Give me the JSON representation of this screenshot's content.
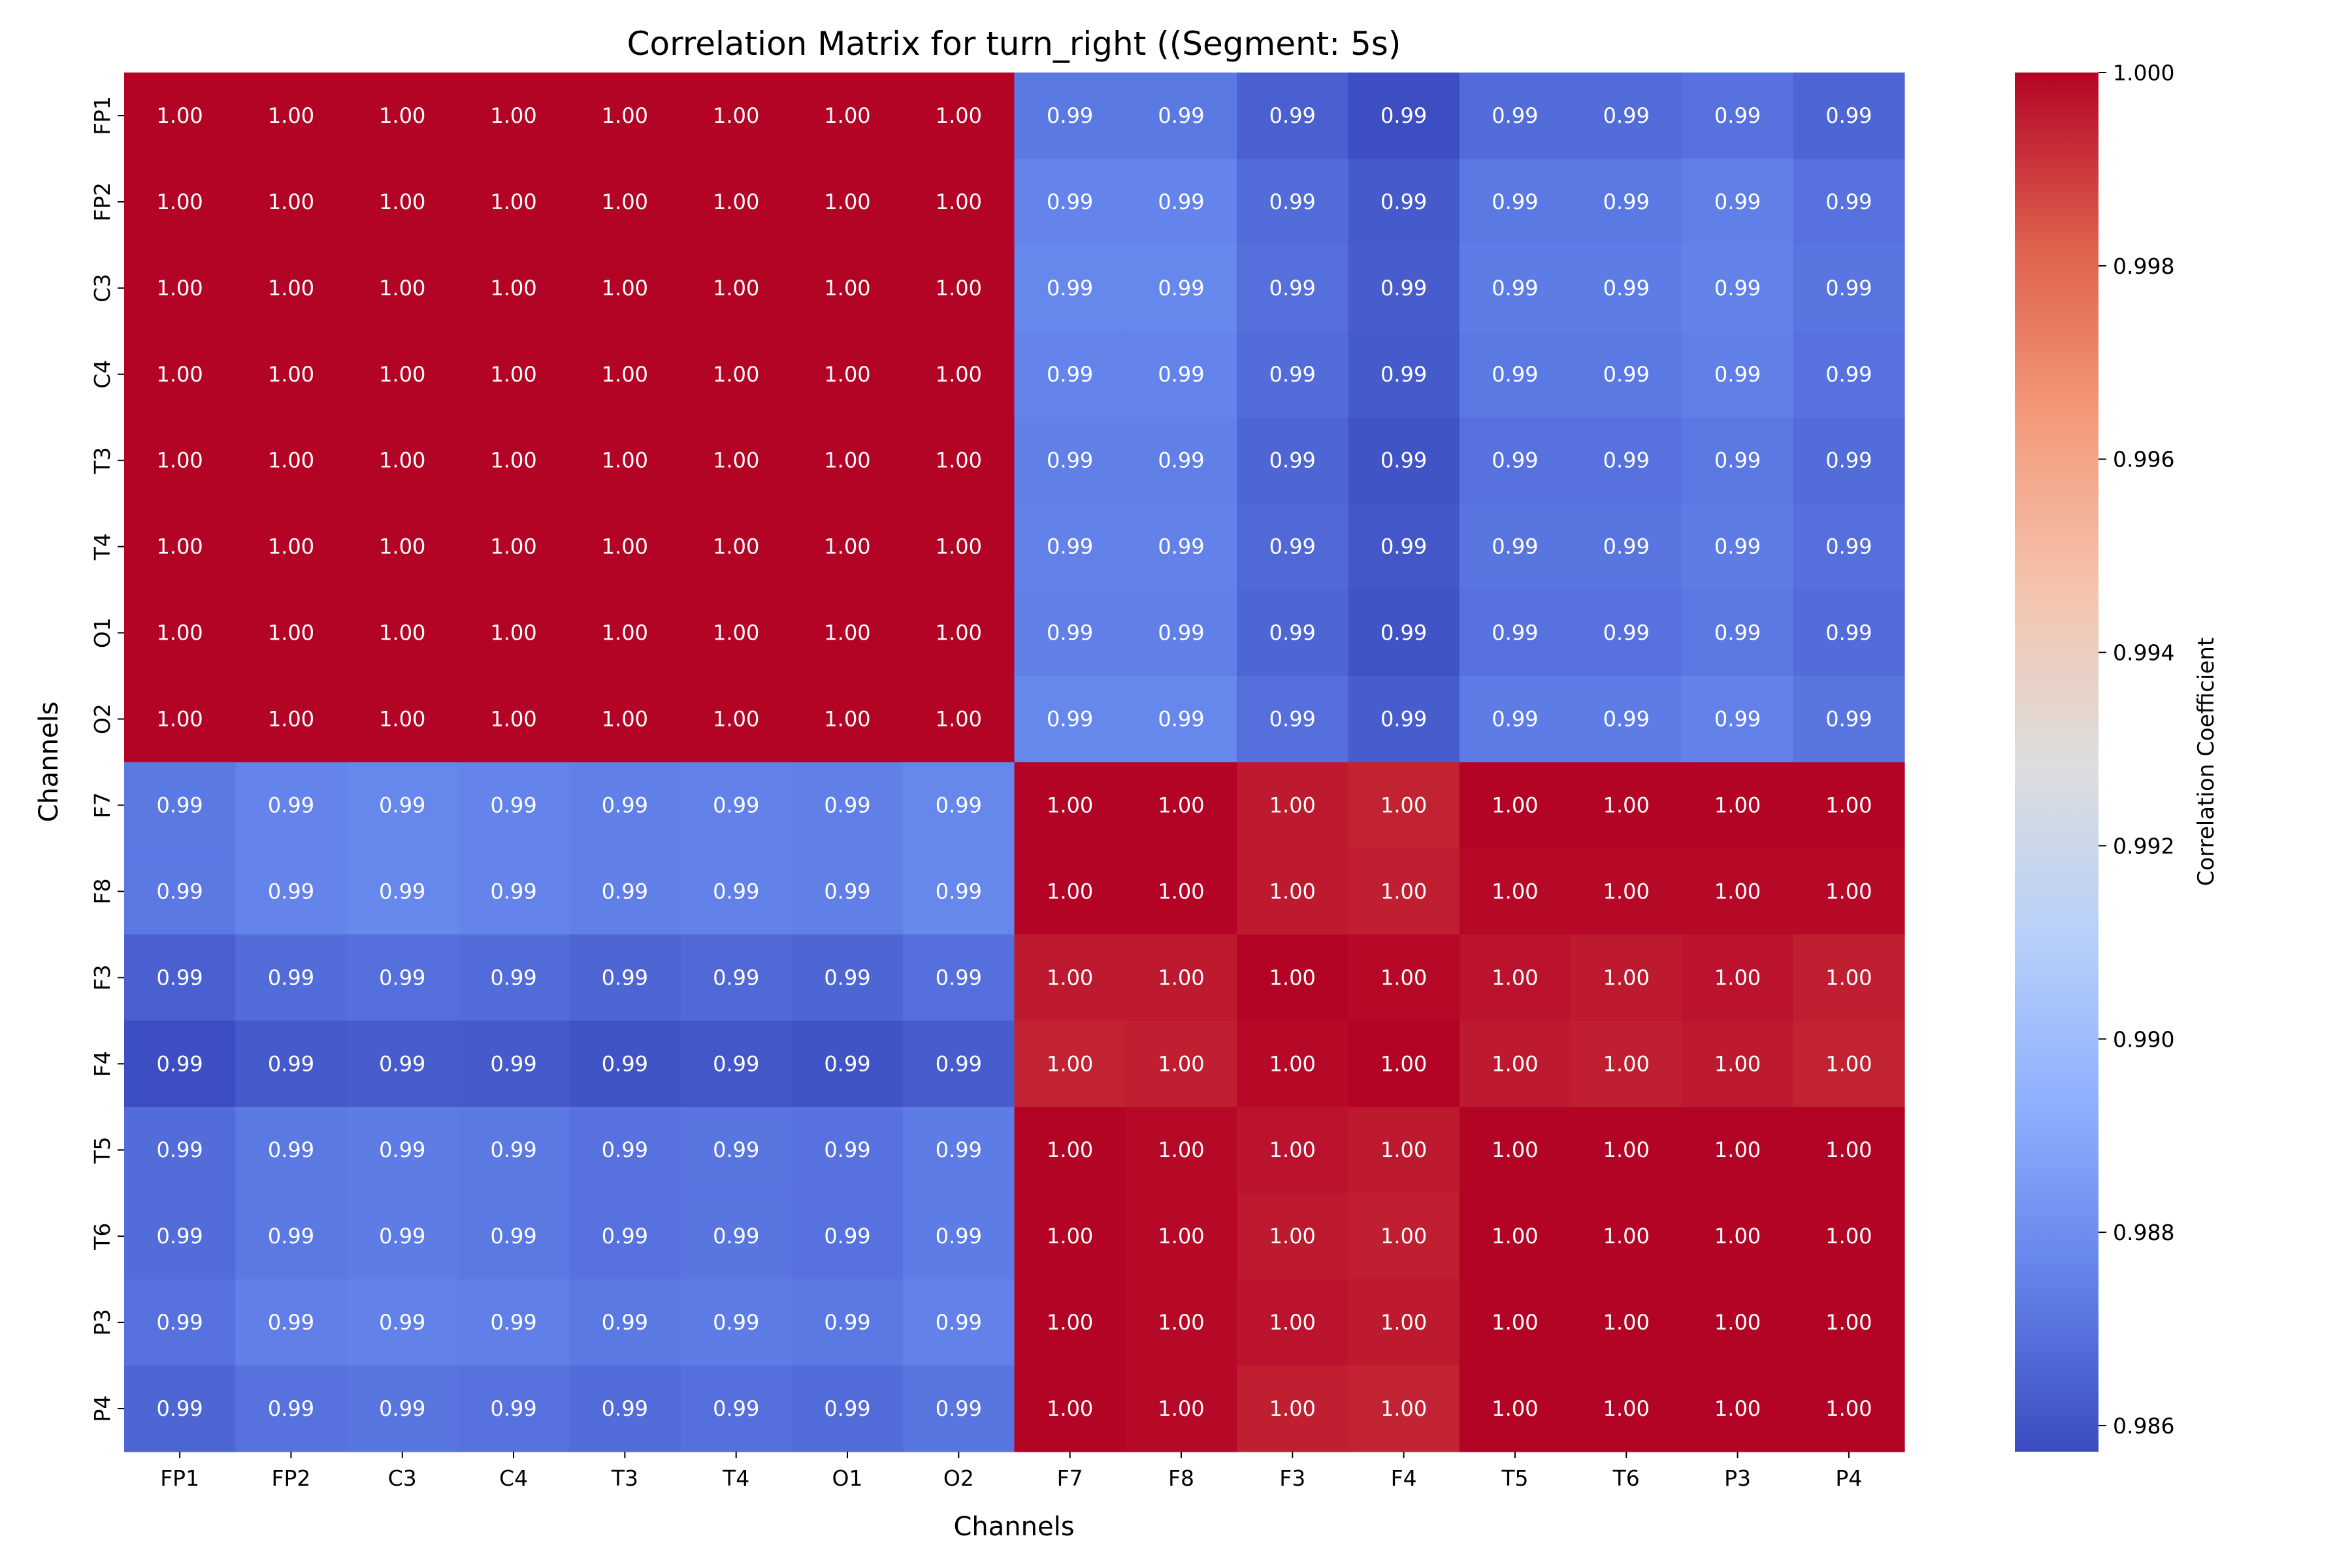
{
  "chart_data": {
    "type": "heatmap",
    "title": "Correlation Matrix for turn_right ((Segment: 5s)",
    "xlabel": "Channels",
    "ylabel": "Channels",
    "x_categories": [
      "FP1",
      "FP2",
      "C3",
      "C4",
      "T3",
      "T4",
      "O1",
      "O2",
      "F7",
      "F8",
      "F3",
      "F4",
      "T5",
      "T6",
      "P3",
      "P4"
    ],
    "y_categories": [
      "FP1",
      "FP2",
      "C3",
      "C4",
      "T3",
      "T4",
      "O1",
      "O2",
      "F7",
      "F8",
      "F3",
      "F4",
      "T5",
      "T6",
      "P3",
      "P4"
    ],
    "colormap": "coolwarm",
    "annotation_format": "2 decimals",
    "annotation_color": "#ffffff",
    "colorbar": {
      "label": "Correlation Coefficient",
      "range": [
        0.98573,
        1.0
      ],
      "ticks": [
        "0.986",
        "0.988",
        "0.990",
        "0.992",
        "0.994",
        "0.996",
        "0.998",
        "1.000"
      ]
    },
    "values": [
      [
        1,
        1,
        1,
        1,
        1,
        1,
        1,
        1,
        0.9872,
        0.9872,
        0.9864,
        0.9858,
        0.9868,
        0.9868,
        0.987,
        0.9866
      ],
      [
        1,
        1,
        1,
        1,
        1,
        1,
        1,
        1,
        0.9876,
        0.9876,
        0.9868,
        0.9862,
        0.9872,
        0.9872,
        0.9874,
        0.987
      ],
      [
        1,
        1,
        1,
        1,
        1,
        1,
        1,
        1,
        0.9877,
        0.9877,
        0.9869,
        0.9863,
        0.9873,
        0.9873,
        0.9875,
        0.9871
      ],
      [
        1,
        1,
        1,
        1,
        1,
        1,
        1,
        1,
        0.9876,
        0.9876,
        0.9868,
        0.9862,
        0.9872,
        0.9872,
        0.9874,
        0.987
      ],
      [
        1,
        1,
        1,
        1,
        1,
        1,
        1,
        1,
        0.9874,
        0.9874,
        0.9866,
        0.986,
        0.987,
        0.987,
        0.9872,
        0.9868
      ],
      [
        1,
        1,
        1,
        1,
        1,
        1,
        1,
        1,
        0.9875,
        0.9875,
        0.9867,
        0.9861,
        0.9871,
        0.9871,
        0.9873,
        0.9869
      ],
      [
        1,
        1,
        1,
        1,
        1,
        1,
        1,
        1,
        0.9874,
        0.9874,
        0.9866,
        0.986,
        0.987,
        0.987,
        0.9872,
        0.9868
      ],
      [
        1,
        1,
        1,
        1,
        1,
        1,
        1,
        1,
        0.9877,
        0.9877,
        0.9869,
        0.9863,
        0.9873,
        0.9873,
        0.9875,
        0.9871
      ],
      [
        0.9872,
        0.9876,
        0.9877,
        0.9876,
        0.9874,
        0.9875,
        0.9874,
        0.9877,
        1,
        1,
        0.9996,
        0.9994,
        1,
        1,
        1,
        1
      ],
      [
        0.9872,
        0.9876,
        0.9877,
        0.9876,
        0.9874,
        0.9875,
        0.9874,
        0.9877,
        1,
        1,
        0.9996,
        0.9995,
        0.9999,
        0.9999,
        0.9999,
        0.9999
      ],
      [
        0.9864,
        0.9868,
        0.9869,
        0.9868,
        0.9866,
        0.9867,
        0.9866,
        0.9869,
        0.9996,
        0.9996,
        1,
        0.9999,
        0.9997,
        0.9996,
        0.9997,
        0.9995
      ],
      [
        0.9858,
        0.9862,
        0.9863,
        0.9862,
        0.986,
        0.9861,
        0.986,
        0.9863,
        0.9994,
        0.9995,
        0.9999,
        1,
        0.9996,
        0.9995,
        0.9996,
        0.9994
      ],
      [
        0.9868,
        0.9872,
        0.9873,
        0.9872,
        0.987,
        0.9871,
        0.987,
        0.9873,
        1,
        0.9999,
        0.9997,
        0.9996,
        1,
        1,
        1,
        1
      ],
      [
        0.9868,
        0.9872,
        0.9873,
        0.9872,
        0.987,
        0.9871,
        0.987,
        0.9873,
        1,
        0.9999,
        0.9996,
        0.9995,
        1,
        1,
        1,
        1
      ],
      [
        0.987,
        0.9874,
        0.9875,
        0.9874,
        0.9872,
        0.9873,
        0.9872,
        0.9875,
        1,
        0.9999,
        0.9997,
        0.9996,
        1,
        1,
        1,
        1
      ],
      [
        0.9866,
        0.987,
        0.9871,
        0.987,
        0.9868,
        0.9869,
        0.9868,
        0.9871,
        1,
        0.9999,
        0.9995,
        0.9994,
        1,
        1,
        1,
        1
      ]
    ]
  }
}
